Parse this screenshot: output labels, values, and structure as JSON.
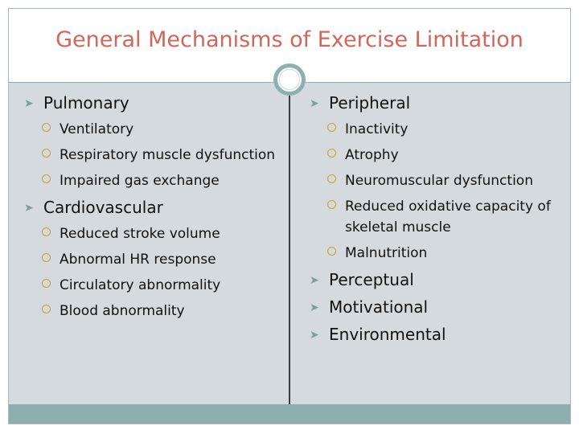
{
  "title": "General Mechanisms of Exercise Limitation",
  "left": {
    "sections": [
      {
        "heading": "Pulmonary",
        "items": [
          "Ventilatory",
          "Respiratory muscle dysfunction",
          "Impaired gas exchange"
        ]
      },
      {
        "heading": "Cardiovascular",
        "items": [
          "Reduced stroke volume",
          "Abnormal HR response",
          "Circulatory abnormality",
          "Blood abnormality"
        ]
      }
    ]
  },
  "right": {
    "sections": [
      {
        "heading": "Peripheral",
        "items": [
          "Inactivity",
          "Atrophy",
          "Neuromuscular dysfunction",
          "Reduced oxidative capacity of skeletal muscle",
          "Malnutrition"
        ]
      },
      {
        "heading": "Perceptual",
        "items": []
      },
      {
        "heading": "Motivational",
        "items": []
      },
      {
        "heading": "Environmental",
        "items": []
      }
    ]
  },
  "colors": {
    "title": "#d3665b",
    "accent": "#8eaeb0",
    "body_background": "#d4dadd",
    "bullet_circle": "#c9a227"
  },
  "icons": {
    "level1_bullet": "wingding-arrow-icon",
    "level2_bullet": "open-circle-bullet-icon"
  }
}
